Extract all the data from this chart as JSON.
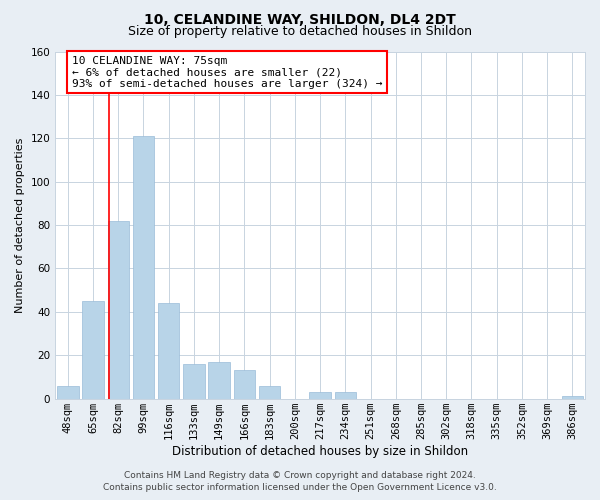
{
  "title": "10, CELANDINE WAY, SHILDON, DL4 2DT",
  "subtitle": "Size of property relative to detached houses in Shildon",
  "xlabel": "Distribution of detached houses by size in Shildon",
  "ylabel": "Number of detached properties",
  "categories": [
    "48sqm",
    "65sqm",
    "82sqm",
    "99sqm",
    "116sqm",
    "133sqm",
    "149sqm",
    "166sqm",
    "183sqm",
    "200sqm",
    "217sqm",
    "234sqm",
    "251sqm",
    "268sqm",
    "285sqm",
    "302sqm",
    "318sqm",
    "335sqm",
    "352sqm",
    "369sqm",
    "386sqm"
  ],
  "values": [
    6,
    45,
    82,
    121,
    44,
    16,
    17,
    13,
    6,
    0,
    3,
    3,
    0,
    0,
    0,
    0,
    0,
    0,
    0,
    0,
    1
  ],
  "bar_color": "#b8d4e8",
  "bar_edge_color": "#9abcd8",
  "red_line_x": 1.62,
  "ylim": [
    0,
    160
  ],
  "yticks": [
    0,
    20,
    40,
    60,
    80,
    100,
    120,
    140,
    160
  ],
  "annotation_line1": "10 CELANDINE WAY: 75sqm",
  "annotation_line2": "← 6% of detached houses are smaller (22)",
  "annotation_line3": "93% of semi-detached houses are larger (324) →",
  "footer_line1": "Contains HM Land Registry data © Crown copyright and database right 2024.",
  "footer_line2": "Contains public sector information licensed under the Open Government Licence v3.0.",
  "background_color": "#e8eef4",
  "plot_bg_color": "#ffffff",
  "grid_color": "#c8d4e0",
  "title_fontsize": 10,
  "subtitle_fontsize": 9,
  "ylabel_fontsize": 8,
  "xlabel_fontsize": 8.5,
  "tick_fontsize": 7.5,
  "annotation_fontsize": 8,
  "footer_fontsize": 6.5
}
